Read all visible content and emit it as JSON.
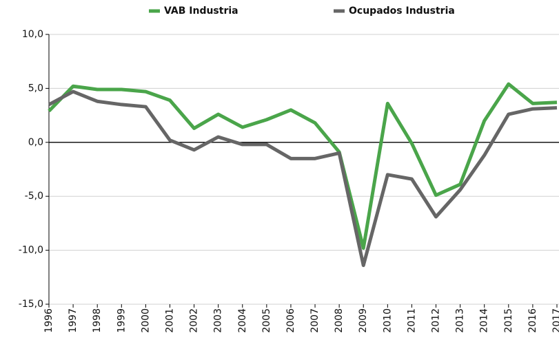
{
  "chart_data": {
    "type": "line",
    "x": [
      1996,
      1997,
      1998,
      1999,
      2000,
      2001,
      2002,
      2003,
      2004,
      2005,
      2006,
      2007,
      2008,
      2009,
      2010,
      2011,
      2012,
      2013,
      2014,
      2015,
      2016,
      2017
    ],
    "xlim": [
      1996,
      2017
    ],
    "series": [
      {
        "name": "VAB Industria",
        "color": "#4aa54a",
        "values": [
          2.9,
          5.2,
          4.9,
          4.9,
          4.7,
          3.9,
          1.3,
          2.6,
          1.4,
          2.1,
          3.0,
          1.8,
          -0.9,
          -9.8,
          3.6,
          -0.1,
          -4.9,
          -3.9,
          2.0,
          5.4,
          3.6,
          3.7
        ]
      },
      {
        "name": "Ocupados Industria",
        "color": "#666666",
        "values": [
          3.5,
          4.7,
          3.8,
          3.5,
          3.3,
          0.2,
          -0.7,
          0.5,
          -0.2,
          -0.2,
          -1.5,
          -1.5,
          -1.0,
          -11.4,
          -3.0,
          -3.4,
          -6.9,
          -4.4,
          -1.2,
          2.6,
          3.1,
          3.2
        ]
      }
    ],
    "ylim": [
      -15,
      10
    ],
    "yticks": [
      {
        "value": -15,
        "label": "-15,0"
      },
      {
        "value": -10,
        "label": "-10,0"
      },
      {
        "value": -5,
        "label": "-5,0"
      },
      {
        "value": 0,
        "label": "0,0"
      },
      {
        "value": 5,
        "label": "5,0"
      },
      {
        "value": 10,
        "label": "10,0"
      }
    ],
    "grid": true
  }
}
